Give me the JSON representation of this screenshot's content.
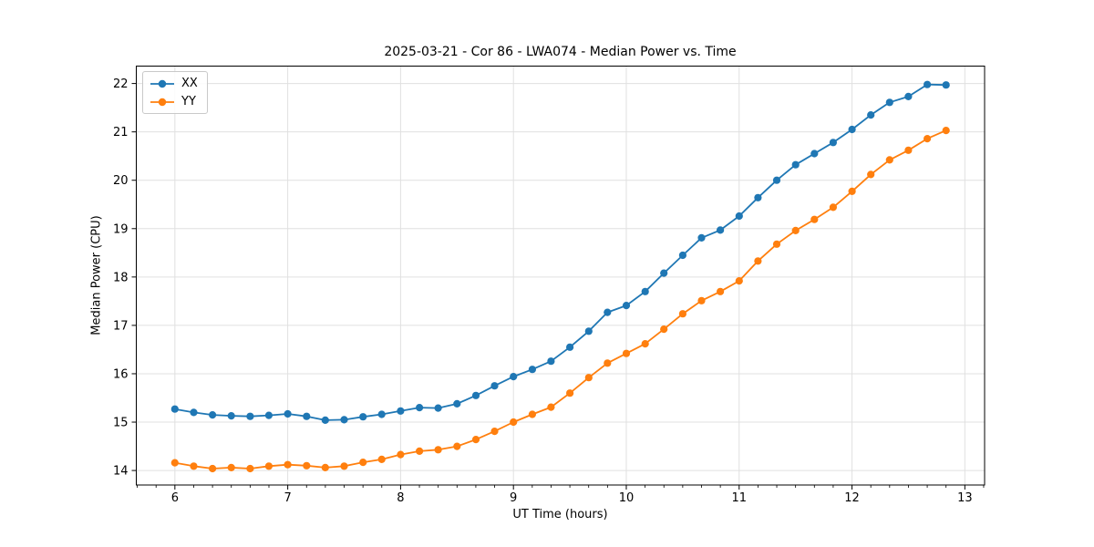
{
  "chart_data": {
    "type": "line",
    "title": "2025-03-21 - Cor 86 - LWA074 - Median Power vs. Time",
    "xlabel": "UT Time (hours)",
    "ylabel": "Median Power (CPU)",
    "xlim": [
      5.658,
      13.175
    ],
    "ylim": [
      13.7,
      22.36
    ],
    "xticks": [
      6,
      7,
      8,
      9,
      10,
      11,
      12,
      13
    ],
    "yticks": [
      14,
      15,
      16,
      17,
      18,
      19,
      20,
      21,
      22
    ],
    "minor_xtick_step_hours": 0.1667,
    "grid": true,
    "legend_position": "upper-left",
    "marker": "circle",
    "x": [
      6.0,
      6.167,
      6.333,
      6.5,
      6.667,
      6.833,
      7.0,
      7.167,
      7.333,
      7.5,
      7.667,
      7.833,
      8.0,
      8.167,
      8.333,
      8.5,
      8.667,
      8.833,
      9.0,
      9.167,
      9.333,
      9.5,
      9.667,
      9.833,
      10.0,
      10.167,
      10.333,
      10.5,
      10.667,
      10.833,
      11.0,
      11.167,
      11.333,
      11.5,
      11.667,
      11.833,
      12.0,
      12.167,
      12.333,
      12.5,
      12.667,
      12.833
    ],
    "series": [
      {
        "name": "XX",
        "color": "#1f77b4",
        "values": [
          15.27,
          15.2,
          15.15,
          15.13,
          15.12,
          15.14,
          15.17,
          15.12,
          15.04,
          15.05,
          15.11,
          15.16,
          15.23,
          15.3,
          15.29,
          15.38,
          15.55,
          15.75,
          15.94,
          16.09,
          16.26,
          16.55,
          16.88,
          17.27,
          17.41,
          17.7,
          18.08,
          18.45,
          18.81,
          18.97,
          19.26,
          19.64,
          20.0,
          20.32,
          20.55,
          20.78,
          21.05,
          21.35,
          21.61,
          21.73,
          21.98,
          21.97
        ]
      },
      {
        "name": "YY",
        "color": "#ff7f0e",
        "values": [
          14.16,
          14.09,
          14.04,
          14.06,
          14.04,
          14.09,
          14.12,
          14.1,
          14.06,
          14.09,
          14.17,
          14.23,
          14.33,
          14.4,
          14.43,
          14.5,
          14.64,
          14.81,
          15.0,
          15.16,
          15.31,
          15.6,
          15.92,
          16.22,
          16.42,
          16.62,
          16.92,
          17.24,
          17.51,
          17.7,
          17.92,
          18.33,
          18.68,
          18.96,
          19.19,
          19.44,
          19.77,
          20.12,
          20.42,
          20.62,
          20.86,
          21.03
        ]
      }
    ]
  },
  "colors": {
    "background": "#ffffff",
    "spine": "#000000",
    "grid": "#e0e0e0",
    "tick_text": "#000000"
  }
}
